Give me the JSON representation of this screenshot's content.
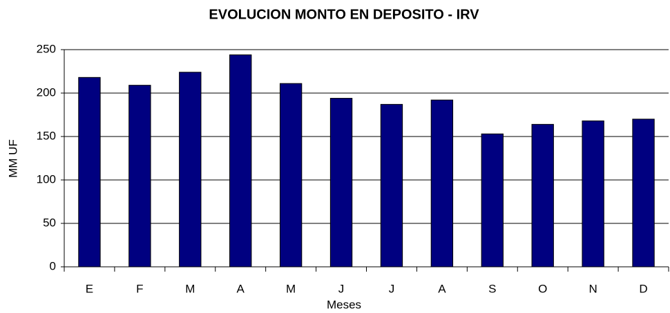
{
  "chart_data": {
    "type": "bar",
    "title": "EVOLUCION MONTO EN DEPOSITO - IRV",
    "xlabel": "Meses",
    "ylabel": "MM UF",
    "categories": [
      "E",
      "F",
      "M",
      "A",
      "M",
      "J",
      "J",
      "A",
      "S",
      "O",
      "N",
      "D"
    ],
    "values": [
      218,
      209,
      224,
      244,
      211,
      194,
      187,
      192,
      153,
      164,
      168,
      170
    ],
    "color": "#000080",
    "ylim": [
      0,
      250
    ],
    "yticks": [
      0,
      50,
      100,
      150,
      200,
      250
    ],
    "grid": true
  }
}
